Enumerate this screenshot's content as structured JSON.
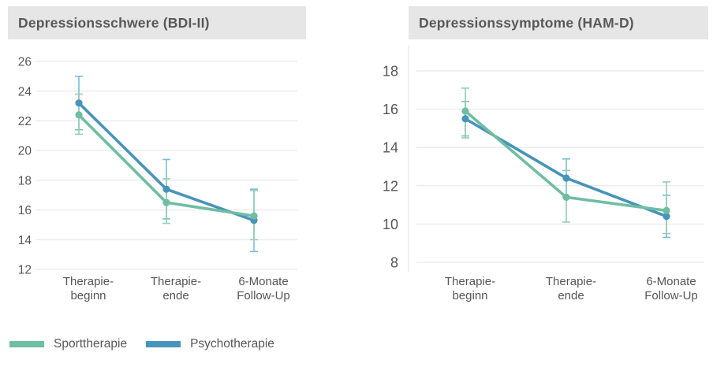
{
  "legend": {
    "items": [
      {
        "label": "Sporttherapie",
        "color": "#6fbda2"
      },
      {
        "label": "Psychotherapie",
        "color": "#4793ba"
      }
    ]
  },
  "chart_data": [
    {
      "type": "line",
      "title": "Depressionsschwere (BDI-II)",
      "categories": [
        [
          "Therapie-",
          "beginn"
        ],
        [
          "Therapie-",
          "ende"
        ],
        [
          "6-Monate",
          "Follow-Up"
        ]
      ],
      "xlabel": "",
      "ylabel": "",
      "ylim": [
        12,
        26
      ],
      "yticks": [
        26,
        24,
        22,
        20,
        18,
        16,
        14,
        12
      ],
      "grid": true,
      "error_bars": true,
      "legend_position": "bottom-left-shared",
      "series": [
        {
          "name": "Sporttherapie",
          "color": "#6fbda2",
          "error_color": "#93ccb6",
          "values": [
            22.4,
            16.5,
            15.6
          ],
          "error_low": [
            21.1,
            15.1,
            14.0
          ],
          "error_high": [
            23.8,
            18.1,
            17.3
          ]
        },
        {
          "name": "Psychotherapie",
          "color": "#4793ba",
          "error_color": "#7bbcda",
          "values": [
            23.2,
            17.4,
            15.3
          ],
          "error_low": [
            21.4,
            15.4,
            13.2
          ],
          "error_high": [
            25.0,
            19.4,
            17.4
          ]
        }
      ]
    },
    {
      "type": "line",
      "title": "Depressionssymptome (HAM-D)",
      "categories": [
        [
          "Therapie-",
          "beginn"
        ],
        [
          "Therapie-",
          "ende"
        ],
        [
          "6-Monate",
          "Follow-Up"
        ]
      ],
      "xlabel": "",
      "ylabel": "",
      "ylim": [
        8,
        18
      ],
      "yticks": [
        18,
        16,
        14,
        12,
        10,
        8
      ],
      "grid": true,
      "error_bars": true,
      "legend_position": "bottom-left-shared",
      "series": [
        {
          "name": "Sporttherapie",
          "color": "#6fbda2",
          "error_color": "#93ccb6",
          "values": [
            15.9,
            11.4,
            10.7
          ],
          "error_low": [
            14.5,
            10.1,
            9.5
          ],
          "error_high": [
            17.1,
            12.8,
            12.2
          ]
        },
        {
          "name": "Psychotherapie",
          "color": "#4793ba",
          "error_color": "#7bbcda",
          "values": [
            15.5,
            12.4,
            10.4
          ],
          "error_low": [
            14.6,
            11.4,
            9.3
          ],
          "error_high": [
            16.4,
            13.4,
            11.5
          ]
        }
      ]
    }
  ]
}
